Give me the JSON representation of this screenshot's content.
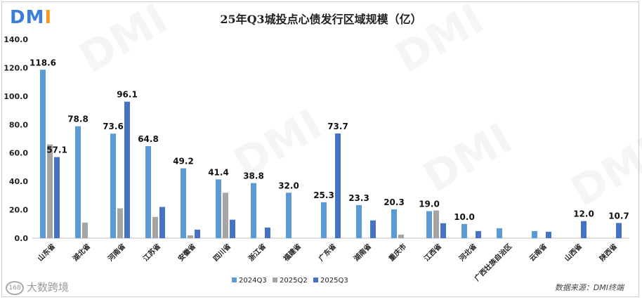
{
  "logo": {
    "text_d": "D",
    "text_m": "M",
    "text_i": "I"
  },
  "bottom_logo": {
    "badge": "168",
    "text": "大数跨境"
  },
  "watermark": "DMI",
  "source": "数据来源：DMI终端",
  "chart_data": {
    "type": "bar",
    "title": "25年Q3城投点心债发行区域规模（亿）",
    "categories": [
      "山东省",
      "湖北省",
      "河南省",
      "江苏省",
      "安徽省",
      "四川省",
      "浙江省",
      "福建省",
      "广东省",
      "湖南省",
      "重庆市",
      "江西省",
      "河北省",
      "广西壮族自治区",
      "云南省",
      "山西省",
      "陕西省"
    ],
    "series": [
      {
        "name": "2024Q3",
        "color": "#5b9bd5",
        "values": [
          118.6,
          78.8,
          73.6,
          64.8,
          49.2,
          41.4,
          38.8,
          32.0,
          25.3,
          23.3,
          20.3,
          19.0,
          10.0,
          7.0,
          5.0,
          0,
          0
        ]
      },
      {
        "name": "2025Q2",
        "color": "#a5a5a5",
        "values": [
          66.0,
          11.0,
          21.0,
          15.0,
          2.0,
          32.0,
          0,
          0,
          0,
          0,
          2.5,
          19.5,
          0,
          0,
          0,
          0,
          0
        ]
      },
      {
        "name": "2025Q3",
        "color": "#4472c4",
        "values": [
          57.1,
          0,
          96.1,
          22.0,
          6.0,
          13.0,
          7.5,
          0,
          73.7,
          12.5,
          0,
          10.5,
          5.0,
          0,
          4.5,
          12.0,
          10.7
        ]
      }
    ],
    "data_labels": [
      {
        "series": 0,
        "index": 0,
        "text": "118.6"
      },
      {
        "series": 2,
        "index": 0,
        "text": "57.1"
      },
      {
        "series": 0,
        "index": 1,
        "text": "78.8"
      },
      {
        "series": 0,
        "index": 2,
        "text": "73.6"
      },
      {
        "series": 2,
        "index": 2,
        "text": "96.1"
      },
      {
        "series": 0,
        "index": 3,
        "text": "64.8"
      },
      {
        "series": 0,
        "index": 4,
        "text": "49.2"
      },
      {
        "series": 0,
        "index": 5,
        "text": "41.4"
      },
      {
        "series": 0,
        "index": 6,
        "text": "38.8"
      },
      {
        "series": 0,
        "index": 7,
        "text": "32.0"
      },
      {
        "series": 0,
        "index": 8,
        "text": "25.3"
      },
      {
        "series": 2,
        "index": 8,
        "text": "73.7"
      },
      {
        "series": 0,
        "index": 9,
        "text": "23.3"
      },
      {
        "series": 0,
        "index": 10,
        "text": "20.3"
      },
      {
        "series": 0,
        "index": 11,
        "text": "19.0"
      },
      {
        "series": 0,
        "index": 12,
        "text": "10.0"
      },
      {
        "series": 2,
        "index": 15,
        "text": "12.0"
      },
      {
        "series": 2,
        "index": 16,
        "text": "10.7"
      }
    ],
    "yticks": [
      "0.0",
      "20.0",
      "40.0",
      "60.0",
      "80.0",
      "100.0",
      "120.0",
      "140.0"
    ],
    "ylim": [
      0,
      140
    ],
    "xlabel": "",
    "ylabel": "",
    "grid": false,
    "legend": "bottom"
  }
}
